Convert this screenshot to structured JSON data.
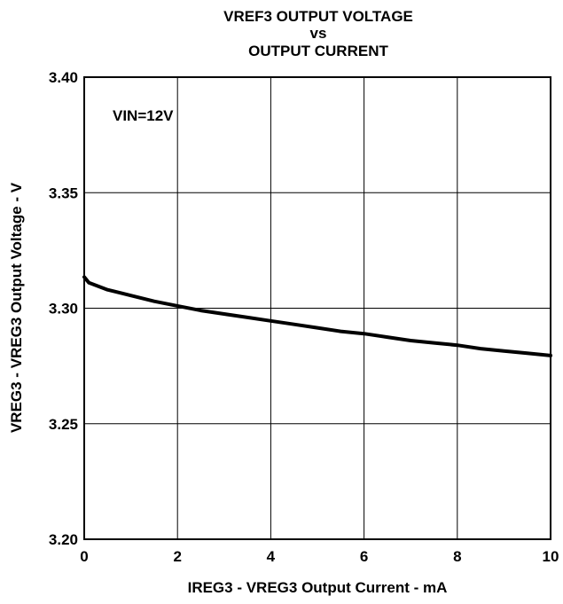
{
  "chart_data": {
    "type": "line",
    "title_lines": [
      "VREF3 OUTPUT VOLTAGE",
      "vs",
      "OUTPUT CURRENT"
    ],
    "xlabel": "IREG3 - VREG3 Output Current  - mA",
    "ylabel": "VREG3 - VREG3 Output Voltage - V",
    "xlim": [
      0,
      10
    ],
    "ylim": [
      3.2,
      3.4
    ],
    "x_ticks": [
      0,
      2,
      4,
      6,
      8,
      10
    ],
    "x_tick_labels": [
      "0",
      "2",
      "4",
      "6",
      "8",
      "10"
    ],
    "y_ticks": [
      3.2,
      3.25,
      3.3,
      3.35,
      3.4
    ],
    "y_tick_labels": [
      "3.20",
      "3.25",
      "3.30",
      "3.35",
      "3.40"
    ],
    "grid": true,
    "annotation": "VIN=12V",
    "series": [
      {
        "x": [
          0,
          0.1,
          0.3,
          0.5,
          0.8,
          1.0,
          1.5,
          2.0,
          2.5,
          3.0,
          3.5,
          4.0,
          4.5,
          5.0,
          5.5,
          6.0,
          6.5,
          7.0,
          7.5,
          8.0,
          8.5,
          9.0,
          9.5,
          10.0
        ],
        "values": [
          3.3135,
          3.311,
          3.3095,
          3.308,
          3.3065,
          3.3055,
          3.303,
          3.301,
          3.299,
          3.2975,
          3.296,
          3.2945,
          3.293,
          3.2915,
          3.29,
          3.289,
          3.2875,
          3.286,
          3.285,
          3.284,
          3.2825,
          3.2815,
          3.2805,
          3.2795
        ]
      }
    ]
  }
}
